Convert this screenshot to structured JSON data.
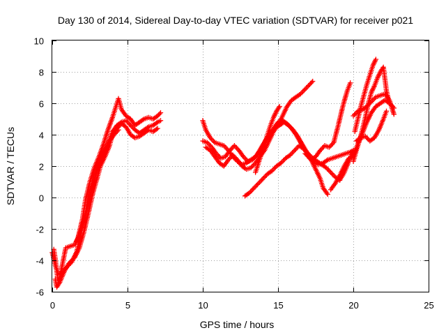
{
  "chart_data": {
    "type": "scatter",
    "title": "Day 130 of 2014, Sidereal Day-to-day VTEC variation (SDTVAR) for receiver p021",
    "xlabel": "GPS time / hours",
    "ylabel": "SDTVAR / TECUs",
    "xlim": [
      0,
      25
    ],
    "ylim": [
      -6,
      10
    ],
    "xticks": [
      0,
      5,
      10,
      15,
      20,
      25
    ],
    "yticks": [
      -6,
      -4,
      -2,
      0,
      2,
      4,
      6,
      8,
      10
    ],
    "xtick_labels": [
      "0",
      "5",
      "10",
      "15",
      "20",
      "25"
    ],
    "ytick_labels": [
      "-6",
      "-4",
      "-2",
      "0",
      "2",
      "4",
      "6",
      "8",
      "10"
    ],
    "grid": true,
    "marker": "plus",
    "color": "#ff0000",
    "series": [
      {
        "x": [
          0.0,
          0.1,
          0.2,
          0.3,
          0.4,
          0.5,
          0.7,
          1.0,
          1.3,
          1.6,
          1.8,
          2.0,
          2.3,
          2.6,
          2.9,
          3.2,
          3.5,
          3.8,
          4.0,
          4.3,
          4.6,
          4.9,
          5.2,
          5.5,
          5.8,
          6.1,
          6.4,
          6.7,
          7.0,
          7.2
        ],
        "y": [
          -3.5,
          -3.9,
          -4.3,
          -4.6,
          -4.8,
          -4.9,
          -4.7,
          -4.4,
          -4.1,
          -3.5,
          -2.8,
          -1.9,
          -0.8,
          0.4,
          1.5,
          2.4,
          3.0,
          3.7,
          4.2,
          4.6,
          4.8,
          4.9,
          4.6,
          4.3,
          4.1,
          4.3,
          4.5,
          4.6,
          4.8,
          4.9
        ]
      },
      {
        "x": [
          0.1,
          0.2,
          0.3,
          0.4,
          0.6,
          0.9,
          1.2,
          1.5,
          1.7,
          2.0,
          2.2,
          2.5,
          2.8,
          3.1,
          3.4,
          3.7,
          4.0,
          4.2,
          4.4,
          4.6,
          4.9,
          5.2,
          5.5,
          5.8,
          6.1,
          6.4,
          6.7,
          7.0,
          7.2
        ],
        "y": [
          -3.3,
          -3.9,
          -4.7,
          -5.4,
          -4.6,
          -3.2,
          -3.1,
          -3.0,
          -2.6,
          -1.4,
          -0.2,
          1.0,
          1.9,
          2.6,
          3.4,
          4.3,
          5.1,
          5.7,
          6.3,
          5.6,
          5.2,
          5.0,
          4.6,
          4.8,
          5.0,
          5.1,
          5.0,
          5.2,
          5.4
        ]
      },
      {
        "x": [
          0.2,
          0.3,
          0.5,
          0.8,
          1.1,
          1.5,
          1.8,
          2.1,
          2.4,
          2.7,
          3.0,
          3.2,
          3.5,
          3.8,
          4.0,
          4.3,
          4.6,
          4.9,
          5.2,
          5.5,
          5.8,
          6.1,
          6.4,
          6.7,
          7.0
        ],
        "y": [
          -5.2,
          -5.7,
          -5.4,
          -4.7,
          -4.2,
          -3.8,
          -3.2,
          -2.2,
          -1.0,
          0.3,
          1.3,
          2.0,
          2.6,
          3.3,
          4.0,
          4.4,
          4.7,
          4.5,
          4.0,
          3.8,
          3.9,
          4.1,
          4.3,
          4.2,
          4.4
        ]
      },
      {
        "x": [
          1.6,
          1.8,
          2.0,
          2.2,
          2.4,
          2.6,
          2.8,
          3.0,
          3.2,
          3.5,
          3.8,
          4.1,
          4.4
        ],
        "y": [
          -2.8,
          -2.4,
          -1.8,
          -1.0,
          -0.2,
          0.5,
          1.2,
          1.8,
          2.3,
          3.0,
          3.6,
          4.0,
          4.3
        ]
      },
      {
        "x": [
          10.0,
          10.2,
          10.5,
          10.8,
          11.1,
          11.4,
          11.7,
          12.0,
          12.3,
          12.6,
          12.9,
          13.2,
          13.5,
          13.8,
          14.1,
          14.4,
          14.7,
          15.0,
          15.3,
          15.6,
          15.9,
          16.2,
          16.5,
          16.8,
          17.1,
          17.4,
          17.7,
          18.0,
          18.3,
          18.6,
          18.9,
          19.2,
          19.5,
          19.8,
          20.0
        ],
        "y": [
          4.9,
          4.3,
          3.8,
          3.5,
          3.4,
          3.3,
          3.0,
          2.6,
          2.3,
          2.1,
          2.2,
          2.4,
          2.6,
          3.0,
          3.5,
          4.0,
          4.4,
          4.8,
          4.9,
          4.7,
          4.4,
          4.0,
          3.5,
          3.0,
          2.5,
          2.2,
          2.1,
          2.2,
          2.4,
          2.5,
          2.6,
          2.7,
          2.8,
          2.9,
          3.0
        ]
      },
      {
        "x": [
          10.0,
          10.3,
          10.6,
          10.9,
          11.2,
          11.5,
          11.8,
          12.1,
          12.4,
          12.7,
          13.0,
          13.3,
          13.6,
          13.9,
          14.2,
          14.5,
          14.8,
          15.1,
          15.4,
          15.7,
          16.0,
          16.3,
          16.6,
          16.9,
          17.2,
          17.5,
          17.8,
          18.0,
          18.3
        ],
        "y": [
          3.6,
          3.5,
          3.2,
          2.8,
          2.5,
          2.6,
          3.0,
          3.3,
          3.0,
          2.6,
          2.3,
          2.4,
          2.7,
          3.2,
          3.7,
          4.1,
          4.4,
          4.6,
          4.8,
          4.6,
          4.3,
          3.9,
          3.4,
          2.9,
          2.4,
          1.8,
          1.2,
          0.6,
          0.2
        ]
      },
      {
        "x": [
          10.2,
          10.5,
          10.8,
          11.1,
          11.4,
          11.7,
          12.0,
          12.3,
          12.6,
          12.9,
          13.2,
          13.5,
          13.8,
          14.1,
          14.4,
          14.7,
          15.0,
          15.3,
          15.6,
          15.9,
          16.2,
          16.5,
          16.8,
          17.1,
          17.3
        ],
        "y": [
          3.2,
          3.0,
          2.6,
          2.2,
          2.0,
          2.4,
          2.7,
          2.4,
          2.0,
          1.8,
          1.9,
          2.2,
          2.6,
          3.0,
          3.6,
          4.2,
          4.6,
          5.2,
          5.8,
          6.2,
          6.4,
          6.6,
          6.9,
          7.2,
          7.4
        ]
      },
      {
        "x": [
          12.8,
          13.1,
          13.4,
          13.7,
          14.0,
          14.3,
          14.6,
          14.9,
          15.2,
          15.5,
          15.8,
          16.1,
          16.4,
          16.7,
          17.0,
          17.3,
          17.6,
          17.9,
          18.2,
          18.5,
          18.8,
          19.1,
          19.4,
          19.7,
          20.0
        ],
        "y": [
          0.1,
          0.3,
          0.6,
          0.9,
          1.2,
          1.5,
          1.7,
          2.0,
          2.2,
          2.5,
          2.7,
          3.0,
          3.3,
          3.1,
          2.8,
          2.5,
          2.3,
          2.1,
          1.9,
          1.6,
          1.3,
          1.1,
          1.6,
          2.3,
          3.0
        ]
      },
      {
        "x": [
          13.5,
          13.7,
          13.9,
          14.1,
          14.3,
          14.5,
          14.7,
          14.9,
          15.1
        ],
        "y": [
          1.6,
          2.2,
          2.8,
          3.4,
          4.0,
          4.6,
          5.1,
          5.5,
          5.8
        ]
      },
      {
        "x": [
          16.8,
          17.0,
          17.2,
          17.5,
          17.8,
          18.1,
          18.4,
          18.7,
          19.0,
          19.3,
          19.6,
          19.8
        ],
        "y": [
          2.8,
          2.6,
          2.4,
          2.6,
          3.0,
          3.3,
          3.2,
          3.5,
          4.6,
          5.8,
          6.8,
          7.3
        ]
      },
      {
        "x": [
          18.5,
          18.8,
          19.1,
          19.4,
          19.7,
          20.0,
          20.3,
          20.6,
          20.9,
          21.2,
          21.5,
          21.8,
          22.1,
          22.4,
          22.7
        ],
        "y": [
          0.5,
          0.9,
          1.4,
          2.0,
          2.5,
          2.6,
          3.4,
          4.1,
          4.8,
          5.4,
          5.8,
          6.0,
          6.2,
          6.0,
          5.7
        ]
      },
      {
        "x": [
          20.0,
          20.2,
          20.4,
          20.6,
          20.8,
          21.0,
          21.2,
          21.4,
          21.6,
          21.8,
          22.0,
          22.2,
          22.4,
          22.6
        ],
        "y": [
          2.3,
          3.0,
          3.6,
          4.3,
          5.1,
          6.0,
          6.7,
          7.1,
          7.6,
          8.0,
          8.3,
          6.8,
          6.0,
          5.8
        ]
      },
      {
        "x": [
          20.1,
          20.3,
          20.5,
          20.7,
          20.9,
          21.1,
          21.3,
          21.5
        ],
        "y": [
          4.2,
          5.0,
          5.8,
          6.5,
          7.2,
          7.8,
          8.4,
          8.8
        ]
      },
      {
        "x": [
          20.0,
          20.3,
          20.6,
          20.9,
          21.2,
          21.5,
          21.8,
          22.1,
          22.4,
          22.7
        ],
        "y": [
          5.2,
          5.5,
          5.6,
          5.8,
          6.1,
          6.4,
          6.5,
          6.6,
          6.2,
          5.3
        ]
      },
      {
        "x": [
          20.2,
          20.5,
          20.8,
          21.1,
          21.4,
          21.7,
          22.0,
          22.2
        ],
        "y": [
          3.6,
          3.8,
          3.9,
          3.6,
          3.8,
          4.3,
          5.0,
          5.5
        ]
      }
    ]
  }
}
